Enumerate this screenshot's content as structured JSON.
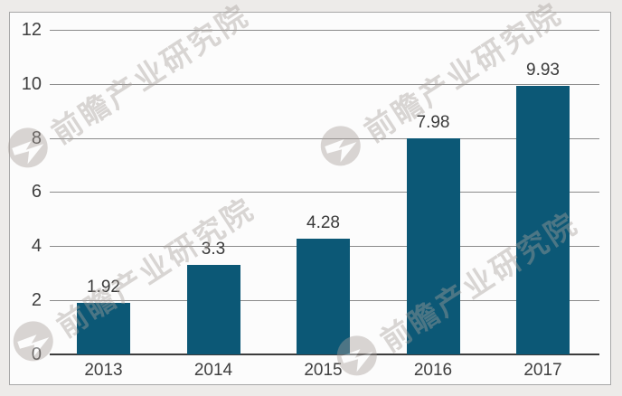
{
  "chart_data": {
    "type": "bar",
    "title": "",
    "xlabel": "",
    "ylabel": "",
    "categories": [
      "2013",
      "2014",
      "2015",
      "2016",
      "2017"
    ],
    "values": [
      1.92,
      3.3,
      4.28,
      7.98,
      9.93
    ],
    "value_labels": [
      "1.92",
      "3.3",
      "4.28",
      "7.98",
      "9.93"
    ],
    "yticks": [
      0,
      2,
      4,
      6,
      8,
      10,
      12
    ],
    "ytick_labels": [
      "0",
      "2",
      "4",
      "6",
      "8",
      "10",
      "12"
    ],
    "ylim": [
      0,
      12
    ],
    "grid": "horizontal gridlines on",
    "legend": "none",
    "bar_color": "#0c5876"
  },
  "watermark": {
    "text": "前瞻产业研究院",
    "logo_icon": "qianzhan-logo-icon",
    "color": "#cfc9c5"
  },
  "colors": {
    "bar": "#0c5876",
    "gridline": "#8b8b8b",
    "axis_line": "#3c3c3c",
    "tick_text": "#3f3f3f",
    "value_text": "#3a3a3a",
    "plot_background": "#fcfcfc",
    "margin_background": "#edebe9",
    "border": "#a8a8a8"
  }
}
